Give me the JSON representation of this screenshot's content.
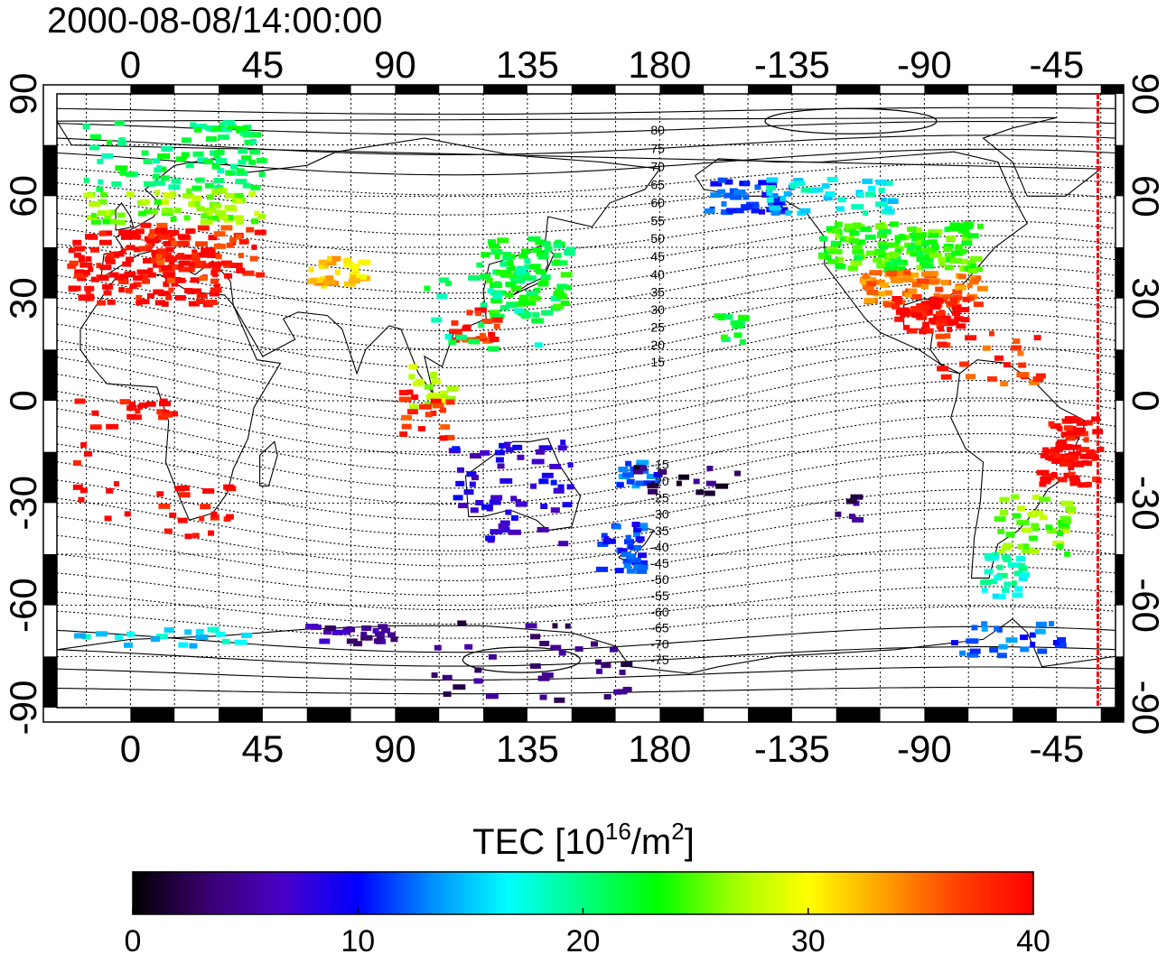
{
  "title": "2000-08-08/14:00:00",
  "map": {
    "lon_range": [
      -25,
      335
    ],
    "lat_range": [
      -90,
      90
    ],
    "lon_ticks": [
      {
        "lon": 0,
        "label": "0"
      },
      {
        "lon": 45,
        "label": "45"
      },
      {
        "lon": 90,
        "label": "90"
      },
      {
        "lon": 135,
        "label": "135"
      },
      {
        "lon": 180,
        "label": "180"
      },
      {
        "lon": 225,
        "label": "-135"
      },
      {
        "lon": 270,
        "label": "-90"
      },
      {
        "lon": 315,
        "label": "-45"
      }
    ],
    "lat_ticks": [
      {
        "lat": 90,
        "label": "90"
      },
      {
        "lat": 60,
        "label": "60"
      },
      {
        "lat": 30,
        "label": "30"
      },
      {
        "lat": 0,
        "label": "0"
      },
      {
        "lat": -30,
        "label": "-30"
      },
      {
        "lat": -60,
        "label": "-60"
      },
      {
        "lat": -90,
        "label": "-90"
      }
    ],
    "terminator_lon": 329,
    "terminator_color": "#ff0000"
  },
  "contour_labels": [
    {
      "lat": 80,
      "label": "80"
    },
    {
      "lat": 75,
      "label": "75"
    },
    {
      "lat": 70,
      "label": "70"
    },
    {
      "lat": 65,
      "label": "65"
    },
    {
      "lat": 60,
      "label": "60"
    },
    {
      "lat": 55,
      "label": "55"
    },
    {
      "lat": 50,
      "label": "50"
    },
    {
      "lat": 45,
      "label": "45"
    },
    {
      "lat": 40,
      "label": "40"
    },
    {
      "lat": 35,
      "label": "35"
    },
    {
      "lat": 30,
      "label": "30"
    },
    {
      "lat": 25,
      "label": "25"
    },
    {
      "lat": 20,
      "label": "20"
    },
    {
      "lat": 15,
      "label": "15"
    },
    {
      "lat": -15,
      "label": "-15"
    },
    {
      "lat": -20,
      "label": "-20"
    },
    {
      "lat": -25,
      "label": "-25"
    },
    {
      "lat": -30,
      "label": "-30"
    },
    {
      "lat": -35,
      "label": "-35"
    },
    {
      "lat": -40,
      "label": "-40"
    },
    {
      "lat": -45,
      "label": "-45"
    },
    {
      "lat": -50,
      "label": "-50"
    },
    {
      "lat": -55,
      "label": "-55"
    },
    {
      "lat": -60,
      "label": "-60"
    },
    {
      "lat": -65,
      "label": "-65"
    },
    {
      "lat": -70,
      "label": "-70"
    },
    {
      "lat": -75,
      "label": "-75"
    }
  ],
  "colorbar": {
    "title_prefix": "TEC  [10",
    "title_sup1": "16",
    "title_mid": "/m",
    "title_sup2": "2",
    "title_suffix": "]",
    "min": 0,
    "max": 40,
    "ticks": [
      {
        "value": 0,
        "label": "0"
      },
      {
        "value": 10,
        "label": "10"
      },
      {
        "value": 20,
        "label": "20"
      },
      {
        "value": 30,
        "label": "30"
      },
      {
        "value": 40,
        "label": "40"
      }
    ],
    "colors": [
      "#000000",
      "#3a0070",
      "#4b00c8",
      "#0000ff",
      "#0090ff",
      "#00ffff",
      "#00ff80",
      "#00ff00",
      "#a0ff00",
      "#ffff00",
      "#ffa000",
      "#ff4000",
      "#ff0000"
    ]
  },
  "tec_regions": [
    {
      "lon": [
        -15,
        45
      ],
      "lat": [
        62,
        82
      ],
      "tec": 21,
      "n": 90
    },
    {
      "lon": [
        -15,
        45
      ],
      "lat": [
        52,
        62
      ],
      "tec": 26,
      "n": 70
    },
    {
      "lon": [
        -20,
        30
      ],
      "lat": [
        28,
        50
      ],
      "tec": 40,
      "n": 150
    },
    {
      "lon": [
        5,
        45
      ],
      "lat": [
        35,
        52
      ],
      "tec": 38,
      "n": 60
    },
    {
      "lon": [
        60,
        80
      ],
      "lat": [
        33,
        42
      ],
      "tec": 32,
      "n": 30
    },
    {
      "lon": [
        120,
        150
      ],
      "lat": [
        24,
        48
      ],
      "tec": 22,
      "n": 90
    },
    {
      "lon": [
        110,
        125
      ],
      "lat": [
        17,
        27
      ],
      "tec": 38,
      "n": 25
    },
    {
      "lon": [
        100,
        140
      ],
      "lat": [
        14,
        40
      ],
      "tec": 20,
      "n": 25
    },
    {
      "lon": [
        95,
        110
      ],
      "lat": [
        -2,
        10
      ],
      "tec": 28,
      "n": 20
    },
    {
      "lon": [
        92,
        110
      ],
      "lat": [
        -15,
        5
      ],
      "tec": 38,
      "n": 20
    },
    {
      "lon": [
        110,
        150
      ],
      "lat": [
        -42,
        -12
      ],
      "tec": 8,
      "n": 60
    },
    {
      "lon": [
        160,
        175
      ],
      "lat": [
        -50,
        -36
      ],
      "tec": 11,
      "n": 35
    },
    {
      "lon": [
        165,
        180
      ],
      "lat": [
        -25,
        -18
      ],
      "tec": 12,
      "n": 20
    },
    {
      "lon": [
        -20,
        0
      ],
      "lat": [
        -35,
        0
      ],
      "tec": 40,
      "n": 15
    },
    {
      "lon": [
        0,
        15
      ],
      "lat": [
        -5,
        0
      ],
      "tec": 40,
      "n": 15
    },
    {
      "lon": [
        10,
        35
      ],
      "lat": [
        -40,
        -25
      ],
      "tec": 40,
      "n": 20
    },
    {
      "lon": [
        195,
        225
      ],
      "lat": [
        55,
        65
      ],
      "tec": 11,
      "n": 40
    },
    {
      "lon": [
        215,
        260
      ],
      "lat": [
        55,
        65
      ],
      "tec": 17,
      "n": 40
    },
    {
      "lon": [
        235,
        290
      ],
      "lat": [
        38,
        52
      ],
      "tec": 24,
      "n": 150
    },
    {
      "lon": [
        250,
        290
      ],
      "lat": [
        28,
        38
      ],
      "tec": 35,
      "n": 80
    },
    {
      "lon": [
        260,
        285
      ],
      "lat": [
        20,
        30
      ],
      "tec": 40,
      "n": 60
    },
    {
      "lon": [
        275,
        310
      ],
      "lat": [
        5,
        20
      ],
      "tec": 37,
      "n": 25
    },
    {
      "lon": [
        310,
        330
      ],
      "lat": [
        -25,
        -5
      ],
      "tec": 40,
      "n": 80
    },
    {
      "lon": [
        295,
        320
      ],
      "lat": [
        -45,
        -28
      ],
      "tec": 26,
      "n": 40
    },
    {
      "lon": [
        290,
        305
      ],
      "lat": [
        -58,
        -45
      ],
      "tec": 18,
      "n": 30
    },
    {
      "lon": [
        200,
        210
      ],
      "lat": [
        17,
        25
      ],
      "tec": 22,
      "n": 12
    },
    {
      "lon": [
        -20,
        40
      ],
      "lat": [
        -72,
        -67
      ],
      "tec": 16,
      "n": 20
    },
    {
      "lon": [
        60,
        90
      ],
      "lat": [
        -72,
        -66
      ],
      "tec": 5,
      "n": 25
    },
    {
      "lon": [
        100,
        170
      ],
      "lat": [
        -88,
        -65
      ],
      "tec": 4,
      "n": 35
    },
    {
      "lon": [
        280,
        320
      ],
      "lat": [
        -75,
        -65
      ],
      "tec": 12,
      "n": 25
    },
    {
      "lon": [
        170,
        210
      ],
      "lat": [
        -28,
        -18
      ],
      "tec": 3,
      "n": 15
    },
    {
      "lon": [
        240,
        250
      ],
      "lat": [
        -35,
        -28
      ],
      "tec": 4,
      "n": 6
    }
  ]
}
